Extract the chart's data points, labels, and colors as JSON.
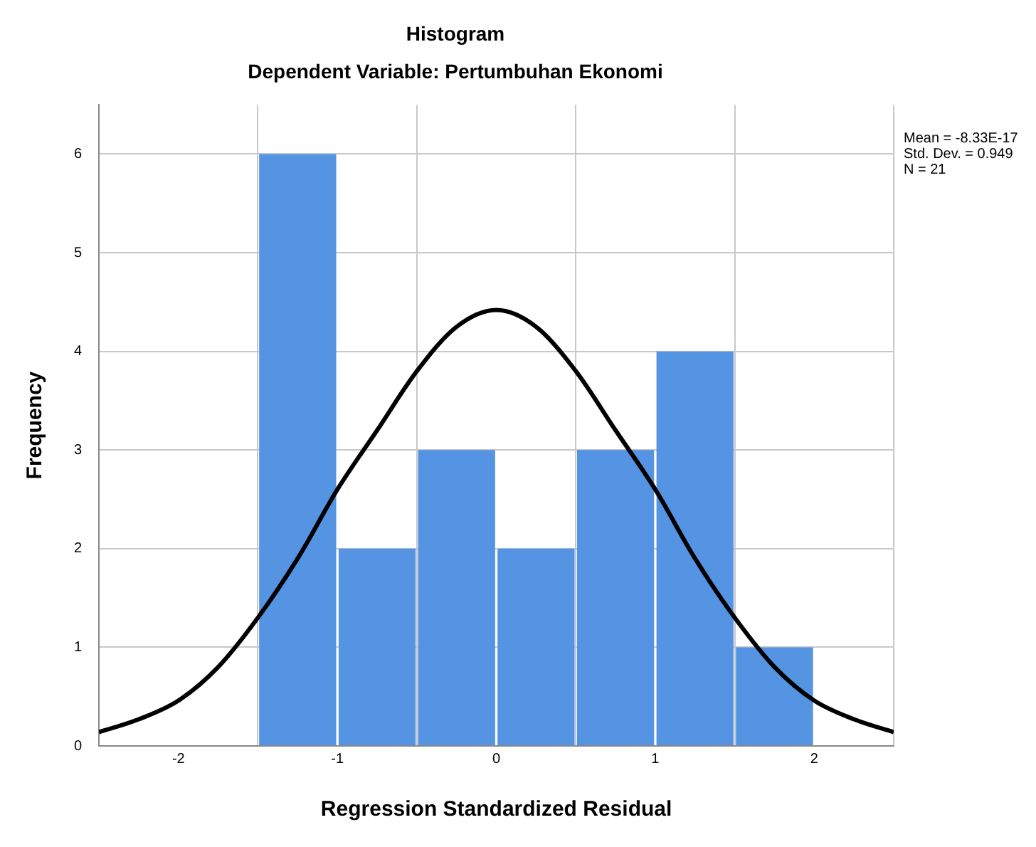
{
  "chart_data": {
    "type": "histogram",
    "title": "Histogram",
    "subtitle": "Dependent Variable: Pertumbuhan Ekonomi",
    "xlabel": "Regression Standardized Residual",
    "ylabel": "Frequency",
    "series": [
      {
        "type": "histogram",
        "bins": [
          -1.5,
          -1,
          -0.5,
          0,
          0.5,
          1,
          1.5,
          2
        ],
        "values": [
          6,
          2,
          3,
          2,
          3,
          4,
          1
        ],
        "color": "#5593e3"
      },
      {
        "type": "line",
        "x": [
          -2.5,
          -2.25,
          -2,
          -1.75,
          -1.5,
          -1.25,
          -1,
          -0.75,
          -0.5,
          -0.25,
          0,
          0.25,
          0.5,
          0.75,
          1,
          1.25,
          1.5,
          1.75,
          2,
          2.25,
          2.5
        ],
        "values": [
          0.14,
          0.27,
          0.46,
          0.8,
          1.3,
          1.9,
          2.6,
          3.2,
          3.8,
          4.25,
          4.42,
          4.25,
          3.8,
          3.2,
          2.6,
          1.9,
          1.3,
          0.8,
          0.46,
          0.27,
          0.14
        ],
        "color": "#000000"
      }
    ],
    "xlim": [
      -2.5,
      2.5
    ],
    "xticks": [
      -2,
      -1,
      0,
      1,
      2
    ],
    "ylim": [
      0,
      6.5
    ],
    "yticks": [
      0,
      1,
      2,
      3,
      4,
      5,
      6
    ],
    "grid": true,
    "annotations": [
      "Mean = -8.33E-17",
      "Std. Dev. = 0.949",
      "N = 21"
    ]
  }
}
